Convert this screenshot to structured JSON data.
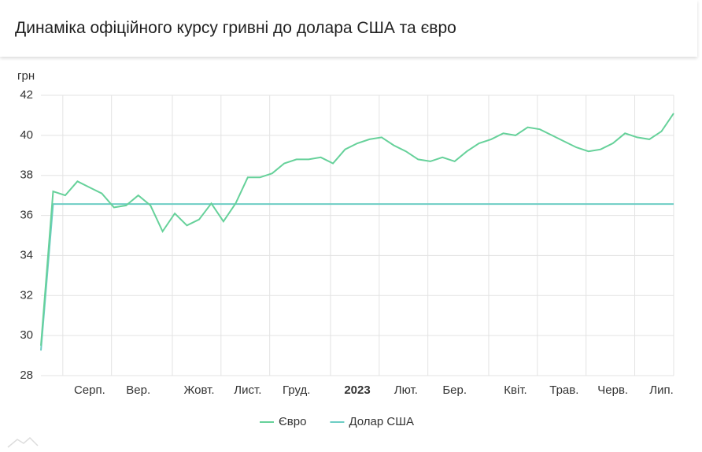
{
  "chart_data": {
    "type": "line",
    "title": "Динаміка офіційного курсу гривні до долара США та євро",
    "y_label": "грн",
    "categories": [
      null,
      null,
      null,
      null,
      "Серп.",
      null,
      null,
      null,
      "Вер.",
      null,
      null,
      null,
      null,
      "Жовт.",
      null,
      null,
      null,
      "Лист.",
      null,
      null,
      null,
      "Груд.",
      null,
      null,
      null,
      null,
      "2023",
      null,
      null,
      null,
      "Лют.",
      null,
      null,
      null,
      "Бер.",
      null,
      null,
      null,
      null,
      "Квіт.",
      null,
      null,
      null,
      "Трав.",
      null,
      null,
      null,
      "Черв.",
      null,
      null,
      null,
      "Лип.",
      null
    ],
    "series": [
      {
        "name": "Євро",
        "color": "#66d19a",
        "values": [
          29.5,
          37.2,
          37.0,
          37.7,
          37.4,
          37.1,
          36.4,
          36.5,
          37.0,
          36.5,
          35.2,
          36.1,
          35.5,
          35.8,
          36.6,
          35.7,
          36.6,
          37.9,
          37.9,
          38.1,
          38.6,
          38.8,
          38.8,
          38.9,
          38.6,
          39.3,
          39.6,
          39.8,
          39.9,
          39.5,
          39.2,
          38.8,
          38.7,
          38.9,
          38.7,
          39.2,
          39.6,
          39.8,
          40.1,
          40.0,
          40.4,
          40.3,
          40.0,
          39.7,
          39.4,
          39.2,
          39.3,
          39.6,
          40.1,
          39.9,
          39.8,
          40.2,
          41.1
        ]
      },
      {
        "name": "Долар США",
        "color": "#6dcdc4",
        "values": [
          29.25,
          36.57,
          36.57,
          36.57,
          36.57,
          36.57,
          36.57,
          36.57,
          36.57,
          36.57,
          36.57,
          36.57,
          36.57,
          36.57,
          36.57,
          36.57,
          36.57,
          36.57,
          36.57,
          36.57,
          36.57,
          36.57,
          36.57,
          36.57,
          36.57,
          36.57,
          36.57,
          36.57,
          36.57,
          36.57,
          36.57,
          36.57,
          36.57,
          36.57,
          36.57,
          36.57,
          36.57,
          36.57,
          36.57,
          36.57,
          36.57,
          36.57,
          36.57,
          36.57,
          36.57,
          36.57,
          36.57,
          36.57,
          36.57,
          36.57,
          36.57,
          36.57,
          36.57
        ]
      }
    ],
    "ylim": [
      28,
      42
    ],
    "yticks": [
      28,
      30,
      32,
      34,
      36,
      38,
      40,
      42
    ],
    "grid": true
  }
}
